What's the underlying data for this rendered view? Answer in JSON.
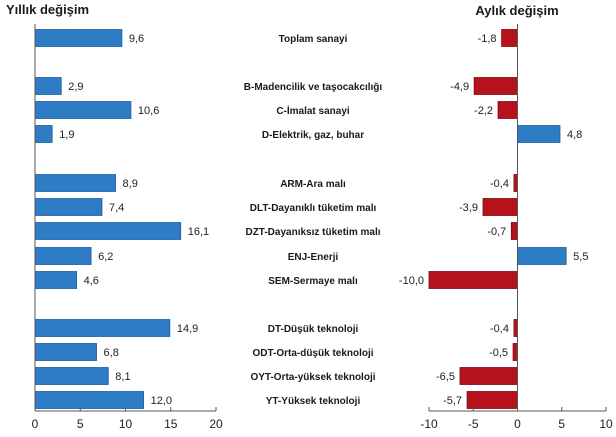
{
  "chart_data": [
    {
      "type": "bar",
      "orientation": "horizontal",
      "title": "Yıllık değişim",
      "xlabel": "",
      "ylabel": "",
      "xlim": [
        0,
        20
      ],
      "xticks": [
        0,
        5,
        10,
        15,
        20
      ],
      "xtick_labels": [
        "0",
        "5",
        "10",
        "15",
        "20"
      ],
      "grid": false,
      "legend": "none",
      "categories": [
        "Toplam sanayi",
        "B-Madencilik ve taşocakcılığı",
        "C-İmalat sanayi",
        "D-Elektrik, gaz, buhar",
        "ARM-Ara malı",
        "DLT-Dayanıklı tüketim malı",
        "DZT-Dayanıksız tüketim malı",
        "ENJ-Enerji",
        "SEM-Sermaye malı",
        "DT-Düşük teknoloji",
        "ODT-Orta-düşük teknoloji",
        "OYT-Orta-yüksek teknoloji",
        "YT-Yüksek teknoloji"
      ],
      "values": [
        9.6,
        2.9,
        10.6,
        1.9,
        8.9,
        7.4,
        16.1,
        6.2,
        4.6,
        14.9,
        6.8,
        8.1,
        12.0
      ],
      "value_labels": [
        "9,6",
        "2,9",
        "10,6",
        "1,9",
        "8,9",
        "7,4",
        "16,1",
        "6,2",
        "4,6",
        "14,9",
        "6,8",
        "8,1",
        "12,0"
      ],
      "colors": {
        "positive": "#2e7cc6",
        "negative": "#b5121b"
      }
    },
    {
      "type": "bar",
      "orientation": "horizontal",
      "title": "Aylık değişim",
      "xlabel": "",
      "ylabel": "",
      "xlim": [
        -10,
        10
      ],
      "xticks": [
        -10,
        -5,
        0,
        5,
        10
      ],
      "xtick_labels": [
        "-10",
        "-5",
        "0",
        "5",
        "10"
      ],
      "grid": false,
      "legend": "none",
      "categories": [
        "Toplam sanayi",
        "B-Madencilik ve taşocakcılığı",
        "C-İmalat sanayi",
        "D-Elektrik, gaz, buhar",
        "ARM-Ara malı",
        "DLT-Dayanıklı tüketim malı",
        "DZT-Dayanıksız tüketim malı",
        "ENJ-Enerji",
        "SEM-Sermaye malı",
        "DT-Düşük teknoloji",
        "ODT-Orta-düşük teknoloji",
        "OYT-Orta-yüksek teknoloji",
        "YT-Yüksek teknoloji"
      ],
      "values": [
        -1.8,
        -4.9,
        -2.2,
        4.8,
        -0.4,
        -3.9,
        -0.7,
        5.5,
        -10.0,
        -0.4,
        -0.5,
        -6.5,
        -5.7
      ],
      "value_labels": [
        "-1,8",
        "-4,9",
        "-2,2",
        "4,8",
        "-0,4",
        "-3,9",
        "-0,7",
        "5,5",
        "-10,0",
        "-0,4",
        "-0,5",
        "-6,5",
        "-5,7"
      ],
      "colors": {
        "positive": "#2e7cc6",
        "negative": "#b5121b"
      }
    }
  ]
}
